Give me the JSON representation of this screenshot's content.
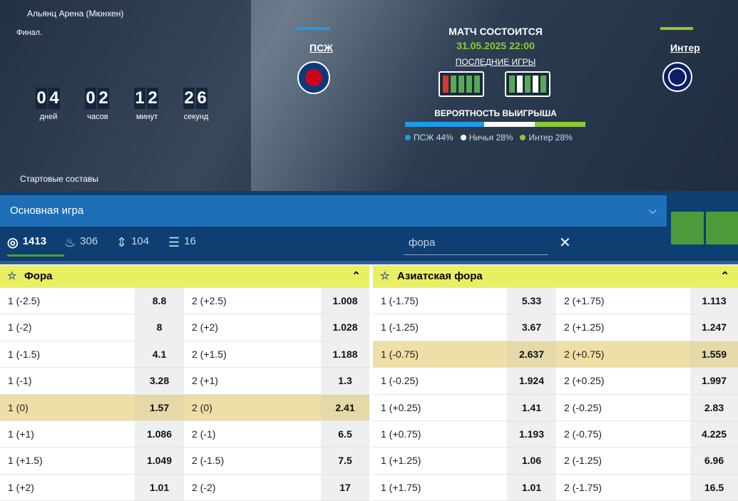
{
  "header": {
    "venue": "Альянц Арена (Мюнхен)",
    "stage": "Финал.",
    "countdown": [
      {
        "value": "04",
        "unit": "дней"
      },
      {
        "value": "02",
        "unit": "часов"
      },
      {
        "value": "12",
        "unit": "минут"
      },
      {
        "value": "26",
        "unit": "секунд"
      }
    ],
    "lineups": "Стартовые составы"
  },
  "match": {
    "home": "ПСЖ",
    "away": "Интер",
    "status": "МАТЧ СОСТОИТСЯ",
    "datetime": "31.05.2025 22:00",
    "last_games": "ПОСЛЕДНИЕ ИГРЫ",
    "probability_title": "ВЕРОЯТНОСТЬ ВЫИГРЫША",
    "probabilities": [
      {
        "label": "ПСЖ 44%",
        "value": 44,
        "color": "#1e9be9"
      },
      {
        "label": "Ничья 28%",
        "value": 28,
        "color": "#ffffff"
      },
      {
        "label": "Интер 28%",
        "value": 28,
        "color": "#8ccb2e"
      }
    ]
  },
  "tabs": {
    "game": "Основная игра",
    "filters": [
      1413,
      306,
      104,
      16
    ],
    "search": "фора"
  },
  "markets": [
    {
      "title": "Фора",
      "highlight": 4,
      "rows": [
        [
          "1 (-2.5)",
          8.8,
          "2 (+2.5)",
          1.008
        ],
        [
          "1 (-2)",
          8,
          "2 (+2)",
          1.028
        ],
        [
          "1 (-1.5)",
          4.1,
          "2 (+1.5)",
          1.188
        ],
        [
          "1 (-1)",
          3.28,
          "2 (+1)",
          1.3
        ],
        [
          "1 (0)",
          1.57,
          "2 (0)",
          2.41
        ],
        [
          "1 (+1)",
          1.086,
          "2 (-1)",
          6.5
        ],
        [
          "1 (+1.5)",
          1.049,
          "2 (-1.5)",
          7.5
        ],
        [
          "1 (+2)",
          1.01,
          "2 (-2)",
          17
        ]
      ]
    },
    {
      "title": "Азиатская фора",
      "highlight": 2,
      "rows": [
        [
          "1 (-1.75)",
          5.33,
          "2 (+1.75)",
          1.113
        ],
        [
          "1 (-1.25)",
          3.67,
          "2 (+1.25)",
          1.247
        ],
        [
          "1 (-0.75)",
          2.637,
          "2 (+0.75)",
          1.559
        ],
        [
          "1 (-0.25)",
          1.924,
          "2 (+0.25)",
          1.997
        ],
        [
          "1 (+0.25)",
          1.41,
          "2 (-0.25)",
          2.83
        ],
        [
          "1 (+0.75)",
          1.193,
          "2 (-0.75)",
          4.225
        ],
        [
          "1 (+1.25)",
          1.06,
          "2 (-1.25)",
          6.96
        ],
        [
          "1 (+1.75)",
          1.01,
          "2 (-1.75)",
          16.5
        ]
      ]
    }
  ]
}
